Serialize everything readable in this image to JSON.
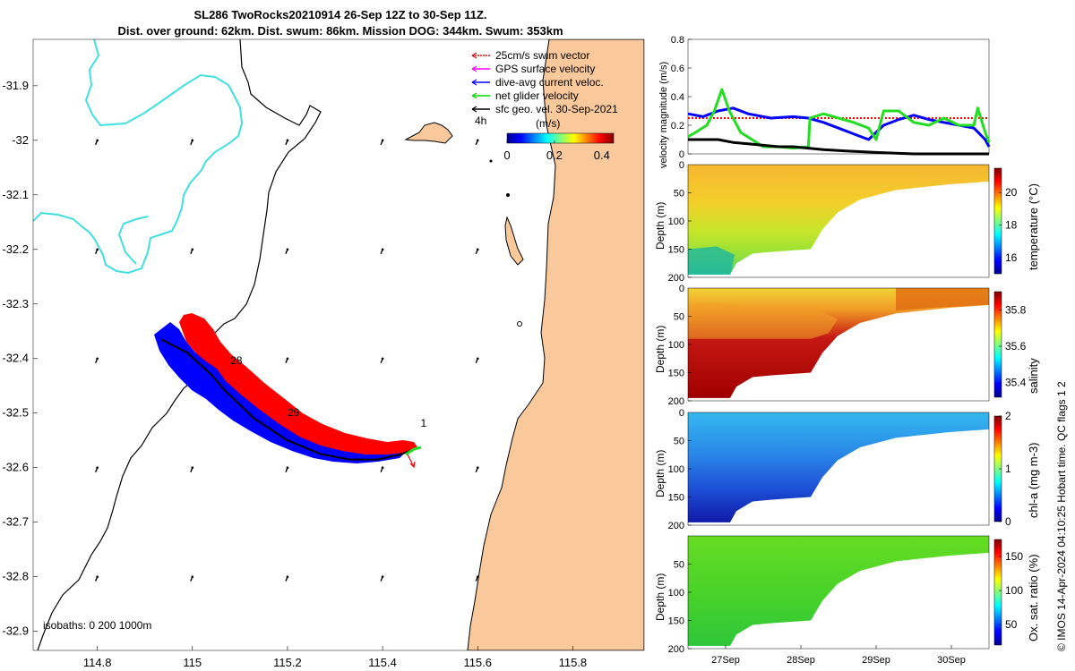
{
  "header": {
    "title_line1": "SL286 TwoRocks20210914 26-Sep 12Z to 30-Sep 11Z.",
    "title_line2": "Dist. over ground: 62km. Dist. swum: 86km. Mission DOG: 344km. Swum: 353km"
  },
  "qc_text": "© IMOS 14-Apr-2024 04:10:25 Hobart time. QC flags 1  2",
  "colors": {
    "land": "#f9c89b",
    "coast_line": "#000000",
    "isobath_200": "#40e0e0",
    "track_red": "#ff0000",
    "track_blue": "#0000ff",
    "track_black": "#000000",
    "track_green": "#22dd22"
  },
  "chart_data": [
    {
      "type": "map",
      "name": "glider-track-map",
      "x_ticks": [
        114.8,
        115,
        115.2,
        115.4,
        115.6,
        115.8
      ],
      "x_tick_labels": [
        "114.8",
        "115",
        "115.2",
        "115.4",
        "115.6",
        "115.8"
      ],
      "y_ticks": [
        -31.9,
        -32,
        -32.1,
        -32.2,
        -32.3,
        -32.4,
        -32.5,
        -32.6,
        -32.7,
        -32.8,
        -32.9
      ],
      "y_tick_labels": [
        "-31.9",
        "-32",
        "-32.1",
        "-32.2",
        "-32.3",
        "-32.4",
        "-32.5",
        "-32.6",
        "-32.7",
        "-32.8",
        "-32.9"
      ],
      "xlim": [
        114.665,
        115.95
      ],
      "ylim": [
        -32.935,
        -31.815
      ],
      "legend": {
        "items": [
          {
            "label": "25cm/s swim vector",
            "color": "#ff0000"
          },
          {
            "label": "GPS surface velocity",
            "color": "#ff00ff"
          },
          {
            "label": "dive-avg current veloc.",
            "color": "#0000ff"
          },
          {
            "label": "net glider velocity",
            "color": "#00dd00"
          },
          {
            "label": "sfc geo. vel. 30-Sep-2021",
            "color": "#000000"
          }
        ],
        "placement": "top-right"
      },
      "colorbar": {
        "label": "(m/s)",
        "ticks": [
          "0",
          "0.2",
          "0.4"
        ],
        "range": [
          0,
          0.45
        ],
        "note": "4h"
      },
      "isobath_label": "isobaths: 0   200  1000m",
      "day_labels": [
        {
          "text": "28",
          "lon": 115.08,
          "lat": -32.41
        },
        {
          "text": "29",
          "lon": 115.2,
          "lat": -32.505
        },
        {
          "text": "1",
          "lon": 115.48,
          "lat": -32.525
        }
      ],
      "track": [
        [
          114.935,
          -32.365
        ],
        [
          114.99,
          -32.39
        ],
        [
          115.04,
          -32.43
        ],
        [
          115.07,
          -32.46
        ],
        [
          115.13,
          -32.51
        ],
        [
          115.2,
          -32.55
        ],
        [
          115.27,
          -32.575
        ],
        [
          115.33,
          -32.585
        ],
        [
          115.39,
          -32.585
        ],
        [
          115.44,
          -32.575
        ],
        [
          115.47,
          -32.565
        ]
      ],
      "geo_vectors": [
        [
          114.8,
          -32.0
        ],
        [
          115.0,
          -32.0
        ],
        [
          115.2,
          -32.0
        ],
        [
          115.4,
          -32.0
        ],
        [
          115.6,
          -32.0
        ],
        [
          114.8,
          -32.2
        ],
        [
          115.0,
          -32.2
        ],
        [
          115.2,
          -32.2
        ],
        [
          115.4,
          -32.2
        ],
        [
          115.6,
          -32.2
        ],
        [
          114.8,
          -32.4
        ],
        [
          115.0,
          -32.4
        ],
        [
          115.2,
          -32.4
        ],
        [
          115.4,
          -32.4
        ],
        [
          115.6,
          -32.4
        ],
        [
          114.8,
          -32.6
        ],
        [
          115.0,
          -32.6
        ],
        [
          115.2,
          -32.6
        ],
        [
          115.4,
          -32.6
        ],
        [
          115.6,
          -32.6
        ],
        [
          114.8,
          -32.8
        ],
        [
          115.0,
          -32.8
        ],
        [
          115.2,
          -32.8
        ],
        [
          115.4,
          -32.8
        ],
        [
          115.6,
          -32.8
        ]
      ]
    },
    {
      "type": "line",
      "name": "velocity-magnitude",
      "ylabel": "velocity magnitude (m/s)",
      "ylim": [
        0,
        0.8
      ],
      "y_ticks": [
        0,
        0.2,
        0.4,
        0.6,
        0.8
      ],
      "y_tick_labels": [
        "0",
        "0.2",
        "0.4",
        "0.6",
        "0.8"
      ],
      "xlim": [
        26.5,
        30.5
      ],
      "series": [
        {
          "color": "#ff0000",
          "style": "dotted",
          "x": [
            26.5,
            30.5
          ],
          "y": [
            0.25,
            0.25
          ]
        },
        {
          "color": "#0000ff",
          "x": [
            26.5,
            26.7,
            26.9,
            27.1,
            27.3,
            27.6,
            27.9,
            28.1,
            28.3,
            28.5,
            28.7,
            28.9,
            29.1,
            29.3,
            29.5,
            29.7,
            29.9,
            30.1,
            30.3,
            30.45,
            30.5
          ],
          "y": [
            0.28,
            0.26,
            0.3,
            0.32,
            0.28,
            0.25,
            0.26,
            0.25,
            0.22,
            0.18,
            0.14,
            0.1,
            0.2,
            0.24,
            0.27,
            0.24,
            0.22,
            0.2,
            0.18,
            0.1,
            0.05
          ]
        },
        {
          "color": "#22dd22",
          "x": [
            26.5,
            26.6,
            26.75,
            26.85,
            26.95,
            27.05,
            27.2,
            27.35,
            27.5,
            27.7,
            27.9,
            28.1,
            28.12,
            28.3,
            28.5,
            28.7,
            28.9,
            29.0,
            29.1,
            29.3,
            29.5,
            29.7,
            29.9,
            30.1,
            30.3,
            30.35,
            30.45,
            30.5
          ],
          "y": [
            0.12,
            0.15,
            0.2,
            0.3,
            0.45,
            0.3,
            0.15,
            0.1,
            0.05,
            0.05,
            0.04,
            0.05,
            0.25,
            0.28,
            0.25,
            0.22,
            0.18,
            0.1,
            0.3,
            0.3,
            0.22,
            0.2,
            0.25,
            0.2,
            0.2,
            0.32,
            0.15,
            0.08
          ]
        },
        {
          "color": "#000000",
          "x": [
            26.5,
            26.7,
            26.9,
            27.1,
            27.3,
            27.5,
            27.7,
            27.9,
            28.1,
            28.3,
            28.6,
            29.0,
            29.5,
            30.0,
            30.5
          ],
          "y": [
            0.1,
            0.1,
            0.1,
            0.08,
            0.07,
            0.06,
            0.05,
            0.05,
            0.04,
            0.03,
            0.02,
            0.01,
            0.0,
            0.0,
            0.0
          ]
        }
      ]
    },
    {
      "type": "heatmap",
      "name": "temperature-section",
      "ylabel": "Depth (m)",
      "colorbar_label": "temperature (°C)",
      "colorbar_ticks": [
        "16",
        "18",
        "20"
      ],
      "colorbar_range": [
        15,
        21.5
      ],
      "y_ticks": [
        50,
        100,
        150,
        200
      ],
      "y_tick_labels": [
        "50",
        "100",
        "150",
        "200"
      ],
      "y_top_label": "0",
      "ylim": [
        0,
        200
      ]
    },
    {
      "type": "heatmap",
      "name": "salinity-section",
      "ylabel": "Depth (m)",
      "colorbar_label": "salinity",
      "colorbar_ticks": [
        "35.4",
        "35.6",
        "35.8"
      ],
      "colorbar_range": [
        35.32,
        35.9
      ],
      "y_ticks": [
        50,
        100,
        150,
        200
      ],
      "y_tick_labels": [
        "50",
        "100",
        "150",
        "200"
      ],
      "y_top_label": "0",
      "ylim": [
        0,
        200
      ]
    },
    {
      "type": "heatmap",
      "name": "chlorophyll-section",
      "ylabel": "Depth (m)",
      "colorbar_label": "chl-a (mg m-3)",
      "colorbar_ticks": [
        "0",
        "1",
        "2"
      ],
      "colorbar_range": [
        0,
        2
      ],
      "y_ticks": [
        50,
        100,
        150,
        200
      ],
      "y_tick_labels": [
        "50",
        "100",
        "150",
        "200"
      ],
      "y_top_label": "0",
      "ylim": [
        0,
        200
      ]
    },
    {
      "type": "heatmap",
      "name": "oxygen-section",
      "ylabel": "Depth (m)",
      "colorbar_label": "Ox. sat. ratio (%)",
      "colorbar_ticks": [
        "50",
        "100",
        "150"
      ],
      "colorbar_range": [
        20,
        175
      ],
      "y_ticks": [
        50,
        100,
        150,
        200
      ],
      "y_tick_labels": [
        "50",
        "100",
        "150",
        "200"
      ],
      "y_top_label": "",
      "ylim": [
        0,
        200
      ],
      "x_ticks": [
        27,
        28,
        29,
        30
      ],
      "x_tick_labels": [
        "27Sep",
        "28Sep",
        "29Sep",
        "30Sep"
      ]
    }
  ]
}
